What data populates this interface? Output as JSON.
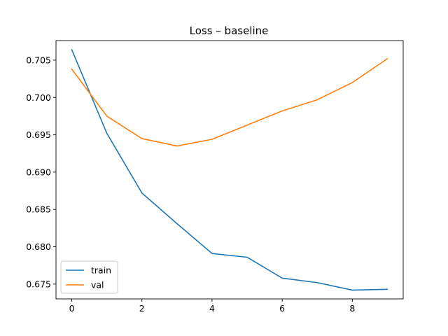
{
  "chart_data": {
    "type": "line",
    "title": "Loss – baseline",
    "xlabel": "",
    "ylabel": "",
    "x": [
      0,
      1,
      2,
      3,
      4,
      5,
      6,
      7,
      8,
      9
    ],
    "xlim": [
      -0.45,
      9.45
    ],
    "ylim": [
      0.67302,
      0.70762
    ],
    "xticks": [
      0,
      2,
      4,
      6,
      8
    ],
    "yticks": [
      0.675,
      0.68,
      0.685,
      0.69,
      0.695,
      0.7,
      0.705
    ],
    "xtick_labels": [
      "0",
      "2",
      "4",
      "6",
      "8"
    ],
    "ytick_labels": [
      "0.675",
      "0.680",
      "0.685",
      "0.690",
      "0.695",
      "0.700",
      "0.705"
    ],
    "grid": false,
    "legend_position": "bottom-left",
    "series": [
      {
        "name": "train",
        "color": "#1f77b4",
        "values": [
          0.7064,
          0.6952,
          0.6872,
          0.6831,
          0.6791,
          0.6786,
          0.6758,
          0.6752,
          0.6742,
          0.6743
        ]
      },
      {
        "name": "val",
        "color": "#ff7f0e",
        "values": [
          0.7038,
          0.6975,
          0.6945,
          0.6935,
          0.6944,
          0.6963,
          0.6982,
          0.6997,
          0.702,
          0.7052
        ]
      }
    ]
  }
}
